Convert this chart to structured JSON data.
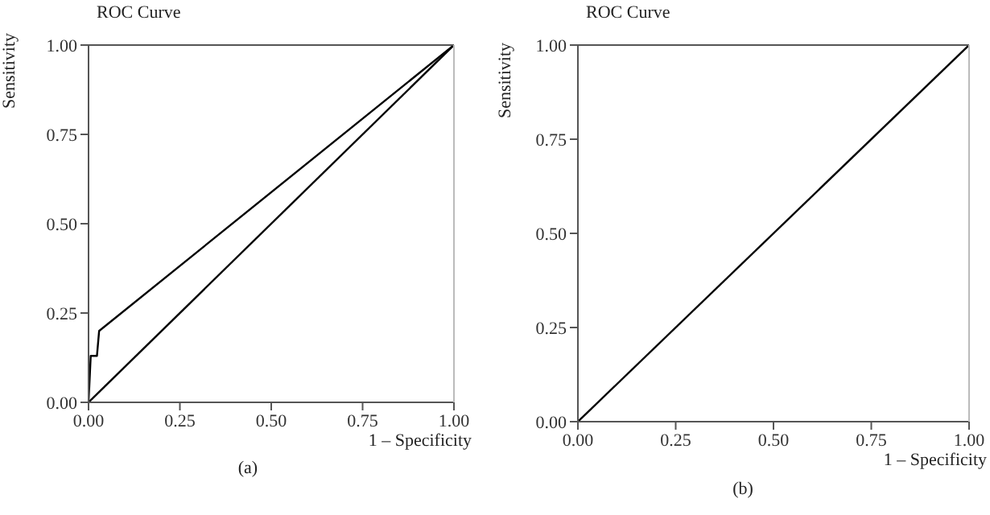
{
  "chart_data": [
    {
      "type": "line",
      "title": "ROC Curve",
      "xlabel": "1 – Specificity",
      "ylabel": "Sensitivity",
      "annotations": [
        "(a)"
      ],
      "marker": "none",
      "line_style": "solid",
      "grid": false,
      "xlim": [
        0,
        1
      ],
      "ylim": [
        0,
        1
      ],
      "xticks": [
        {
          "value": 0,
          "label": "0.00"
        },
        {
          "value": 0.25,
          "label": "0.25"
        },
        {
          "value": 0.5,
          "label": "0.50"
        },
        {
          "value": 0.75,
          "label": "0.75"
        },
        {
          "value": 1,
          "label": "1.00"
        }
      ],
      "yticks": [
        {
          "value": 0,
          "label": "0.00"
        },
        {
          "value": 0.25,
          "label": "0.25"
        },
        {
          "value": 0.5,
          "label": "0.50"
        },
        {
          "value": 0.75,
          "label": "0.75"
        },
        {
          "value": 1,
          "label": "1.00"
        }
      ],
      "series": [
        {
          "color": "#000000",
          "x": [
            0,
            0.006,
            0.023,
            0.029,
            1
          ],
          "values": [
            0,
            0.13,
            0.13,
            0.2,
            1
          ]
        },
        {
          "color": "#000000",
          "x": [
            0,
            1
          ],
          "values": [
            0,
            1
          ]
        }
      ]
    },
    {
      "type": "line",
      "title": "ROC Curve",
      "xlabel": "1 – Specificity",
      "ylabel": "Sensitivity",
      "annotations": [
        "(b)"
      ],
      "marker": "none",
      "line_style": "solid",
      "grid": false,
      "xlim": [
        0,
        1
      ],
      "ylim": [
        0,
        1
      ],
      "xticks": [
        {
          "value": 0,
          "label": "0.00"
        },
        {
          "value": 0.25,
          "label": "0.25"
        },
        {
          "value": 0.5,
          "label": "0.50"
        },
        {
          "value": 0.75,
          "label": "0.75"
        },
        {
          "value": 1,
          "label": "1.00"
        }
      ],
      "yticks": [
        {
          "value": 0,
          "label": "0.00"
        },
        {
          "value": 0.25,
          "label": "0.25"
        },
        {
          "value": 0.5,
          "label": "0.50"
        },
        {
          "value": 0.75,
          "label": "0.75"
        },
        {
          "value": 1,
          "label": "1.00"
        }
      ],
      "series": [
        {
          "color": "#000000",
          "x": [
            0,
            1
          ],
          "values": [
            0,
            1
          ]
        }
      ]
    }
  ]
}
